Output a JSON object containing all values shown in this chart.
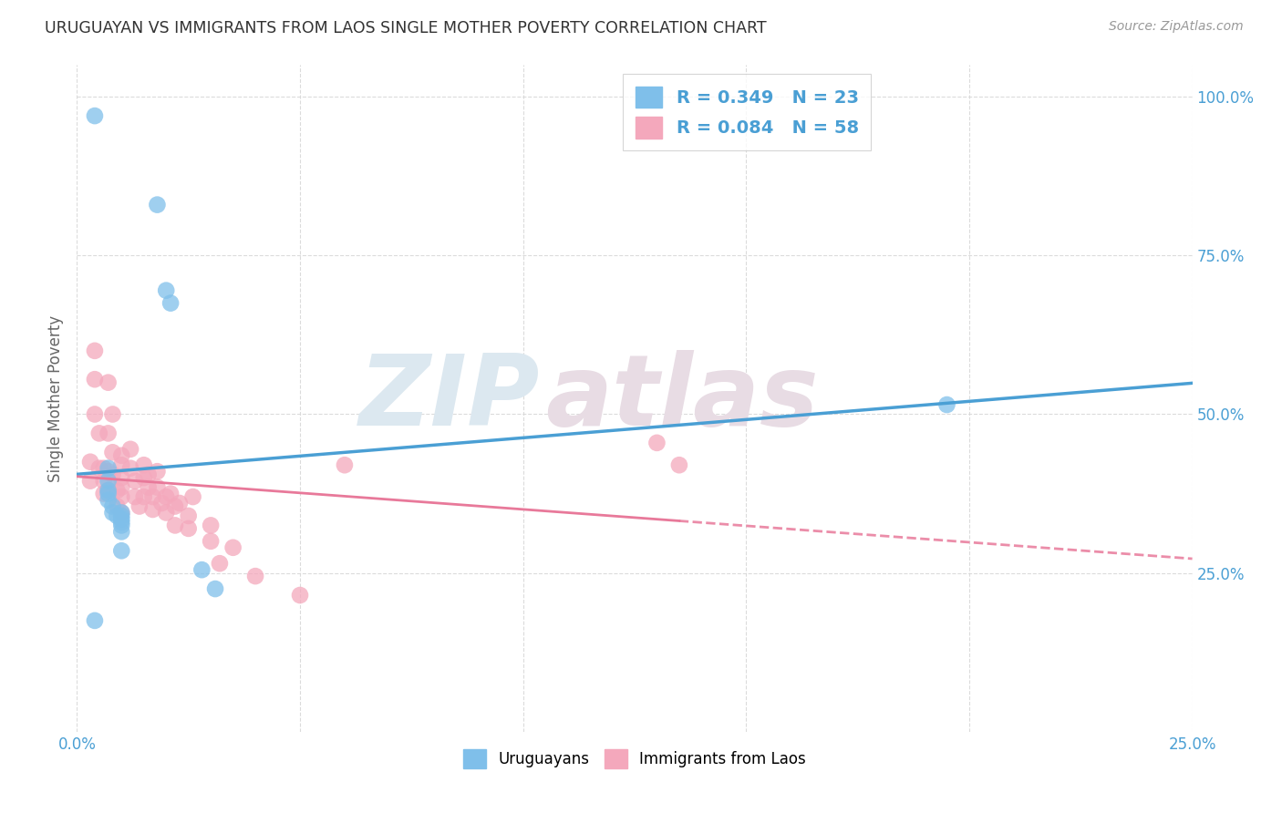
{
  "title": "URUGUAYAN VS IMMIGRANTS FROM LAOS SINGLE MOTHER POVERTY CORRELATION CHART",
  "source": "Source: ZipAtlas.com",
  "ylabel": "Single Mother Poverty",
  "yticks": [
    "100.0%",
    "75.0%",
    "50.0%",
    "25.0%"
  ],
  "ytick_vals": [
    1.0,
    0.75,
    0.5,
    0.25
  ],
  "xlim": [
    0.0,
    0.25
  ],
  "ylim": [
    0.0,
    1.05
  ],
  "legend1_label": "R = 0.349   N = 23",
  "legend2_label": "R = 0.084   N = 58",
  "legend1_color": "#7fbfea",
  "legend2_color": "#f4a8bc",
  "watermark_zip": "ZIP",
  "watermark_atlas": "atlas",
  "uruguayan_x": [
    0.004,
    0.018,
    0.02,
    0.021,
    0.007,
    0.007,
    0.007,
    0.007,
    0.007,
    0.008,
    0.008,
    0.009,
    0.01,
    0.01,
    0.01,
    0.01,
    0.01,
    0.01,
    0.01,
    0.004,
    0.028,
    0.031,
    0.195
  ],
  "uruguayan_y": [
    0.97,
    0.83,
    0.695,
    0.675,
    0.415,
    0.395,
    0.38,
    0.375,
    0.365,
    0.355,
    0.345,
    0.34,
    0.345,
    0.34,
    0.335,
    0.33,
    0.325,
    0.315,
    0.285,
    0.175,
    0.255,
    0.225,
    0.515
  ],
  "laos_x": [
    0.003,
    0.003,
    0.004,
    0.004,
    0.004,
    0.005,
    0.005,
    0.006,
    0.006,
    0.006,
    0.007,
    0.007,
    0.007,
    0.007,
    0.008,
    0.008,
    0.008,
    0.009,
    0.009,
    0.01,
    0.01,
    0.01,
    0.01,
    0.01,
    0.01,
    0.012,
    0.012,
    0.013,
    0.013,
    0.014,
    0.015,
    0.015,
    0.015,
    0.016,
    0.016,
    0.017,
    0.017,
    0.018,
    0.018,
    0.019,
    0.02,
    0.02,
    0.021,
    0.022,
    0.022,
    0.023,
    0.025,
    0.025,
    0.026,
    0.03,
    0.03,
    0.032,
    0.035,
    0.04,
    0.05,
    0.06,
    0.13,
    0.135
  ],
  "laos_y": [
    0.425,
    0.395,
    0.6,
    0.555,
    0.5,
    0.47,
    0.415,
    0.415,
    0.395,
    0.375,
    0.55,
    0.47,
    0.41,
    0.38,
    0.5,
    0.44,
    0.405,
    0.38,
    0.355,
    0.435,
    0.42,
    0.4,
    0.385,
    0.37,
    0.345,
    0.445,
    0.415,
    0.395,
    0.37,
    0.355,
    0.42,
    0.4,
    0.37,
    0.405,
    0.385,
    0.37,
    0.35,
    0.41,
    0.385,
    0.36,
    0.37,
    0.345,
    0.375,
    0.355,
    0.325,
    0.36,
    0.34,
    0.32,
    0.37,
    0.325,
    0.3,
    0.265,
    0.29,
    0.245,
    0.215,
    0.42,
    0.455,
    0.42
  ],
  "blue_line_color": "#4a9fd4",
  "pink_line_color": "#e8799a",
  "grid_color": "#d8d8d8",
  "background_color": "#ffffff"
}
